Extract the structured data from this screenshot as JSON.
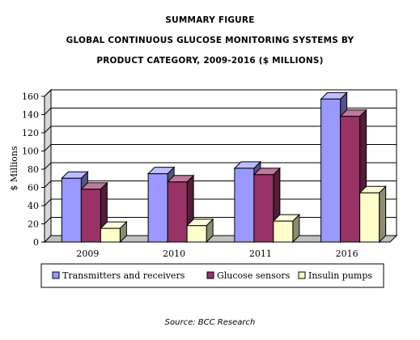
{
  "chart_data": {
    "type": "bar",
    "title_lines": [
      "SUMMARY FIGURE",
      "GLOBAL CONTINUOUS GLUCOSE MONITORING SYSTEMS BY",
      "PRODUCT CATEGORY, 2009-2016 ($ MILLIONS)"
    ],
    "ylabel": "$ Millions",
    "ylim": [
      0,
      160
    ],
    "yticks": [
      0,
      20,
      40,
      60,
      80,
      100,
      120,
      140,
      160
    ],
    "categories": [
      "2009",
      "2010",
      "2011",
      "2016"
    ],
    "series": [
      {
        "name": "Transmitters and receivers",
        "values": [
          70,
          75,
          81,
          157
        ],
        "color": "#9999ff"
      },
      {
        "name": "Glucose sensors",
        "values": [
          58,
          66,
          74,
          138
        ],
        "color": "#993366"
      },
      {
        "name": "Insulin pumps",
        "values": [
          15,
          18,
          23,
          54
        ],
        "color": "#ffffcc"
      }
    ],
    "grid": true,
    "legend_position": "bottom",
    "source": "Source: BCC Research"
  }
}
